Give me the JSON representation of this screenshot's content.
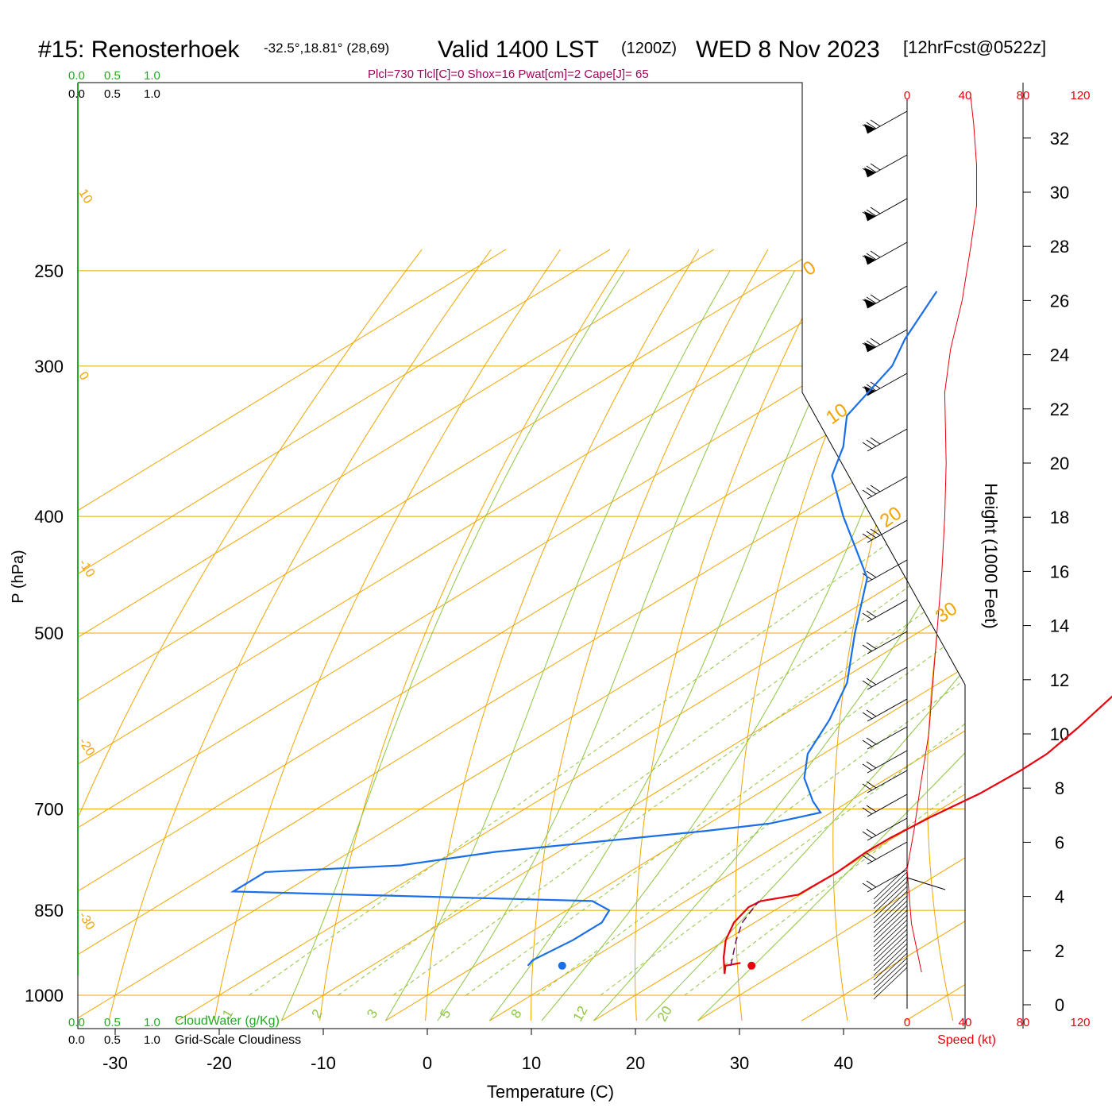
{
  "header": {
    "station": "#15: Renosterhoek",
    "coords": "-32.5°,18.81° (28,69)",
    "valid": "Valid 1400 LST",
    "zulu": "(1200Z)",
    "date": "WED 8 Nov 2023",
    "forecast": "[12hrFcst@0522z]",
    "params": "Plcl=730 Tlcl[C]=0 Shox=16 Pwat[cm]=2 Cape[J]= 65"
  },
  "scales": {
    "cloud_top_green": [
      "0.0",
      "0.5",
      "1.0"
    ],
    "cloud_top_black": [
      "0.0",
      "0.5",
      "1.0"
    ],
    "cloud_bottom_green": [
      "0.0",
      "0.5",
      "1.0"
    ],
    "cloud_bottom_black": [
      "0.0",
      "0.5",
      "1.0"
    ],
    "cloudwater_label": "CloudWater (g/Kg)",
    "cloudiness_label": "Grid-Scale Cloudiness",
    "speed_ticks": [
      "0",
      "40",
      "80",
      "120"
    ],
    "speed_label": "Speed (kt)"
  },
  "colors": {
    "temperature": "#e8000b",
    "dewpoint": "#1a6fe8",
    "parcel": "#6b0f6b",
    "isotherm": "#f0a500",
    "dry_adiabat": "#f0a500",
    "moist_adiabat": "#8cc63f",
    "mixing_ratio": "#8cc63f",
    "cloud_axis": "#22aa22",
    "speed": "#e8000b",
    "params": "#a0005a"
  },
  "chart_data": {
    "type": "line",
    "subtype": "skew-T log-P sounding",
    "xlabel": "Temperature (C)",
    "ylabel": "P (hPa)",
    "right_axis_label": "Height (1000 Feet)",
    "x_ticks": [
      -30,
      -20,
      -10,
      0,
      10,
      20,
      30,
      40
    ],
    "p_ticks": [
      250,
      300,
      400,
      500,
      700,
      850,
      1000
    ],
    "height_ticks": [
      0,
      2,
      4,
      6,
      8,
      10,
      12,
      14,
      16,
      18,
      20,
      22,
      24,
      26,
      28,
      30,
      32
    ],
    "isotherm_labels": [
      "10",
      "0",
      "-10",
      "-20",
      "-30"
    ],
    "isotherm_labels_right": [
      "0",
      "10",
      "20",
      "30"
    ],
    "mixing_ratio_labels": [
      "1",
      "2",
      "3",
      "5",
      "8",
      "12",
      "20"
    ],
    "temperature": [
      {
        "p": 940,
        "t": 25.0
      },
      {
        "p": 945,
        "t": 24.0
      },
      {
        "p": 960,
        "t": 25.2
      },
      {
        "p": 930,
        "t": 22.5
      },
      {
        "p": 900,
        "t": 20.0
      },
      {
        "p": 870,
        "t": 18.0
      },
      {
        "p": 845,
        "t": 17.0
      },
      {
        "p": 835,
        "t": 17.2
      },
      {
        "p": 825,
        "t": 19.8
      },
      {
        "p": 790,
        "t": 20.0
      },
      {
        "p": 760,
        "t": 19.6
      },
      {
        "p": 740,
        "t": 19.7
      },
      {
        "p": 710,
        "t": 20.3
      },
      {
        "p": 680,
        "t": 21.3
      },
      {
        "p": 650,
        "t": 21.6
      },
      {
        "p": 630,
        "t": 21.5
      },
      {
        "p": 600,
        "t": 20.4
      },
      {
        "p": 560,
        "t": 18.5
      },
      {
        "p": 500,
        "t": 13.7
      },
      {
        "p": 450,
        "t": 10.1
      },
      {
        "p": 400,
        "t": 4.9
      },
      {
        "p": 380,
        "t": 2.1
      },
      {
        "p": 350,
        "t": -2.4
      },
      {
        "p": 300,
        "t": -11.1
      },
      {
        "p": 260,
        "t": -19.5
      }
    ],
    "dewpoint": [
      {
        "p": 945,
        "t": 5.0
      },
      {
        "p": 935,
        "t": 4.6
      },
      {
        "p": 900,
        "t": 5.3
      },
      {
        "p": 870,
        "t": 5.3
      },
      {
        "p": 850,
        "t": 4.1
      },
      {
        "p": 835,
        "t": 1.0
      },
      {
        "p": 820,
        "t": -35.0
      },
      {
        "p": 790,
        "t": -35.0
      },
      {
        "p": 780,
        "t": -23.0
      },
      {
        "p": 760,
        "t": -16.0
      },
      {
        "p": 730,
        "t": 1.0
      },
      {
        "p": 720,
        "t": 5.8
      },
      {
        "p": 705,
        "t": 9.0
      },
      {
        "p": 690,
        "t": 6.5
      },
      {
        "p": 660,
        "t": 2.0
      },
      {
        "p": 630,
        "t": -1.5
      },
      {
        "p": 590,
        "t": -4.8
      },
      {
        "p": 550,
        "t": -8.9
      },
      {
        "p": 500,
        "t": -16.0
      },
      {
        "p": 450,
        "t": -23.5
      },
      {
        "p": 400,
        "t": -35.5
      },
      {
        "p": 370,
        "t": -43.0
      },
      {
        "p": 350,
        "t": -46.5
      },
      {
        "p": 330,
        "t": -51.0
      },
      {
        "p": 300,
        "t": -54.5
      },
      {
        "p": 285,
        "t": -57.5
      },
      {
        "p": 260,
        "t": -62.0
      }
    ],
    "parcel_path": [
      {
        "p": 945,
        "t": 24.5
      },
      {
        "p": 900,
        "t": 21.0
      },
      {
        "p": 870,
        "t": 18.8
      },
      {
        "p": 835,
        "t": 17.0
      }
    ],
    "surface_temperature": {
      "p": 945,
      "t": 26.5
    },
    "surface_dewpoint": {
      "p": 945,
      "t": 8.3
    },
    "wind_profile": {
      "speed_kt": [
        {
          "h": 1.2,
          "v": 10
        },
        {
          "h": 3.0,
          "v": 3
        },
        {
          "h": 5.0,
          "v": 0
        },
        {
          "h": 6.5,
          "v": 5
        },
        {
          "h": 8.0,
          "v": 9
        },
        {
          "h": 10.0,
          "v": 15
        },
        {
          "h": 12.0,
          "v": 18
        },
        {
          "h": 14.0,
          "v": 21
        },
        {
          "h": 16.0,
          "v": 24
        },
        {
          "h": 18.0,
          "v": 26
        },
        {
          "h": 20.0,
          "v": 27
        },
        {
          "h": 22.6,
          "v": 26
        },
        {
          "h": 24.2,
          "v": 30
        },
        {
          "h": 26.0,
          "v": 38
        },
        {
          "h": 28.0,
          "v": 44
        },
        {
          "h": 29.5,
          "v": 48
        },
        {
          "h": 31.0,
          "v": 48
        },
        {
          "h": 32.5,
          "v": 46
        },
        {
          "h": 33.5,
          "v": 44
        }
      ]
    }
  }
}
